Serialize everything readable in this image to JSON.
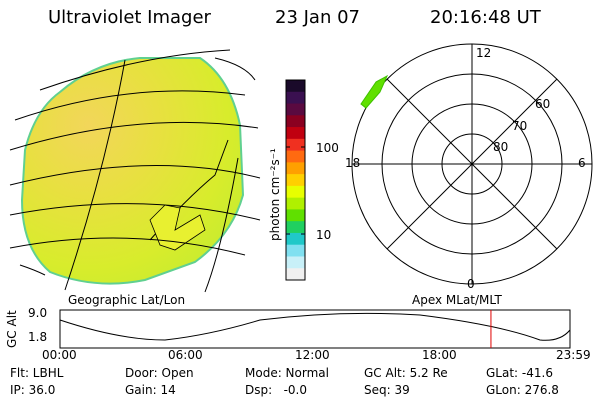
{
  "header": {
    "title": "Ultraviolet Imager",
    "date": "23 Jan 07",
    "time": "20:16:48 UT"
  },
  "colorbar": {
    "label": "photon cm⁻²s⁻¹",
    "ticks": [
      "100",
      "10"
    ],
    "colors": [
      "#1a0a2a",
      "#3a1050",
      "#5a0a40",
      "#8a0020",
      "#c00010",
      "#f03020",
      "#ff6a10",
      "#ffa000",
      "#ffd000",
      "#e8ff00",
      "#b0f000",
      "#60e000",
      "#20d060",
      "#20c8c8",
      "#80e0f0",
      "#c8f0f8",
      "#f0f0f0"
    ]
  },
  "geo_panel": {
    "caption": "Geographic Lat/Lon"
  },
  "polar_panel": {
    "caption": "Apex MLat/MLT",
    "mlt_labels": {
      "top": "12",
      "bottom": "0",
      "left": "18",
      "right": "6"
    },
    "lat_labels": [
      "80",
      "70",
      "60"
    ]
  },
  "timeline": {
    "axis_label": "GC Alt",
    "y_ticks": [
      "9.0",
      "1.8"
    ],
    "x_ticks": [
      "00:00",
      "06:00",
      "12:00",
      "18:00",
      "23:59"
    ],
    "current_time_fraction": 0.845
  },
  "info": {
    "row1": [
      "Flt: LBHL",
      "Door: Open",
      "Mode: Normal",
      "GC Alt: 5.2 Re",
      "GLat: -41.6"
    ],
    "row2": [
      "IP: 36.0",
      "Gain: 14",
      "Dsp:   -0.0",
      "Seq: 39",
      "GLon: 276.8"
    ]
  }
}
